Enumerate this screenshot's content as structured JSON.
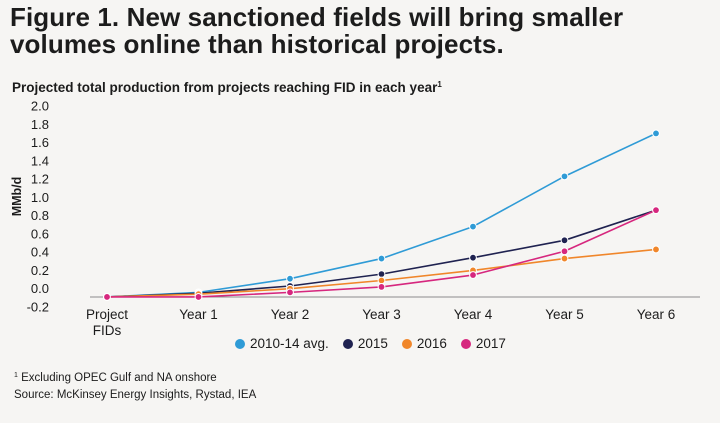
{
  "header": {
    "title_line1": "Figure 1. New sanctioned fields will bring smaller",
    "title_line2": "volumes online than historical projects.",
    "subtitle": "Projected total production from projects reaching FID in each year",
    "subtitle_mark": "1"
  },
  "chart_data": {
    "type": "line",
    "title": "Projected total production from projects reaching FID in each year",
    "xlabel": "",
    "ylabel": "MMb/d",
    "ylim": [
      -0.2,
      2.0
    ],
    "yticks": [
      -0.2,
      0.0,
      0.2,
      0.4,
      0.6,
      0.8,
      1.0,
      1.2,
      1.4,
      1.6,
      1.8,
      2.0
    ],
    "ytick_labels": [
      "-0.2",
      "0.0",
      "0.2",
      "0.4",
      "0.6",
      "0.8",
      "1.0",
      "1.2",
      "1.4",
      "1.6",
      "1.8",
      "2.0"
    ],
    "categories": [
      "Project FIDs",
      "Year 1",
      "Year 2",
      "Year 3",
      "Year 4",
      "Year 5",
      "Year 6"
    ],
    "grid": false,
    "legend_position": "bottom",
    "series": [
      {
        "name": "2010-14 avg.",
        "color": "#2f9bd6",
        "values": [
          -0.09,
          -0.04,
          0.11,
          0.33,
          0.68,
          1.23,
          1.7
        ]
      },
      {
        "name": "2015",
        "color": "#1f2250",
        "values": [
          -0.09,
          -0.05,
          0.03,
          0.16,
          0.34,
          0.53,
          0.86
        ]
      },
      {
        "name": "2016",
        "color": "#f0862a",
        "values": [
          -0.09,
          -0.06,
          0.0,
          0.09,
          0.2,
          0.33,
          0.43
        ]
      },
      {
        "name": "2017",
        "color": "#d6277e",
        "values": [
          -0.09,
          -0.09,
          -0.04,
          0.02,
          0.15,
          0.41,
          0.86
        ]
      }
    ]
  },
  "footnotes": {
    "mark": "1",
    "note": " Excluding OPEC Gulf and NA onshore",
    "source": "Source: McKinsey Energy Insights, Rystad, IEA"
  }
}
